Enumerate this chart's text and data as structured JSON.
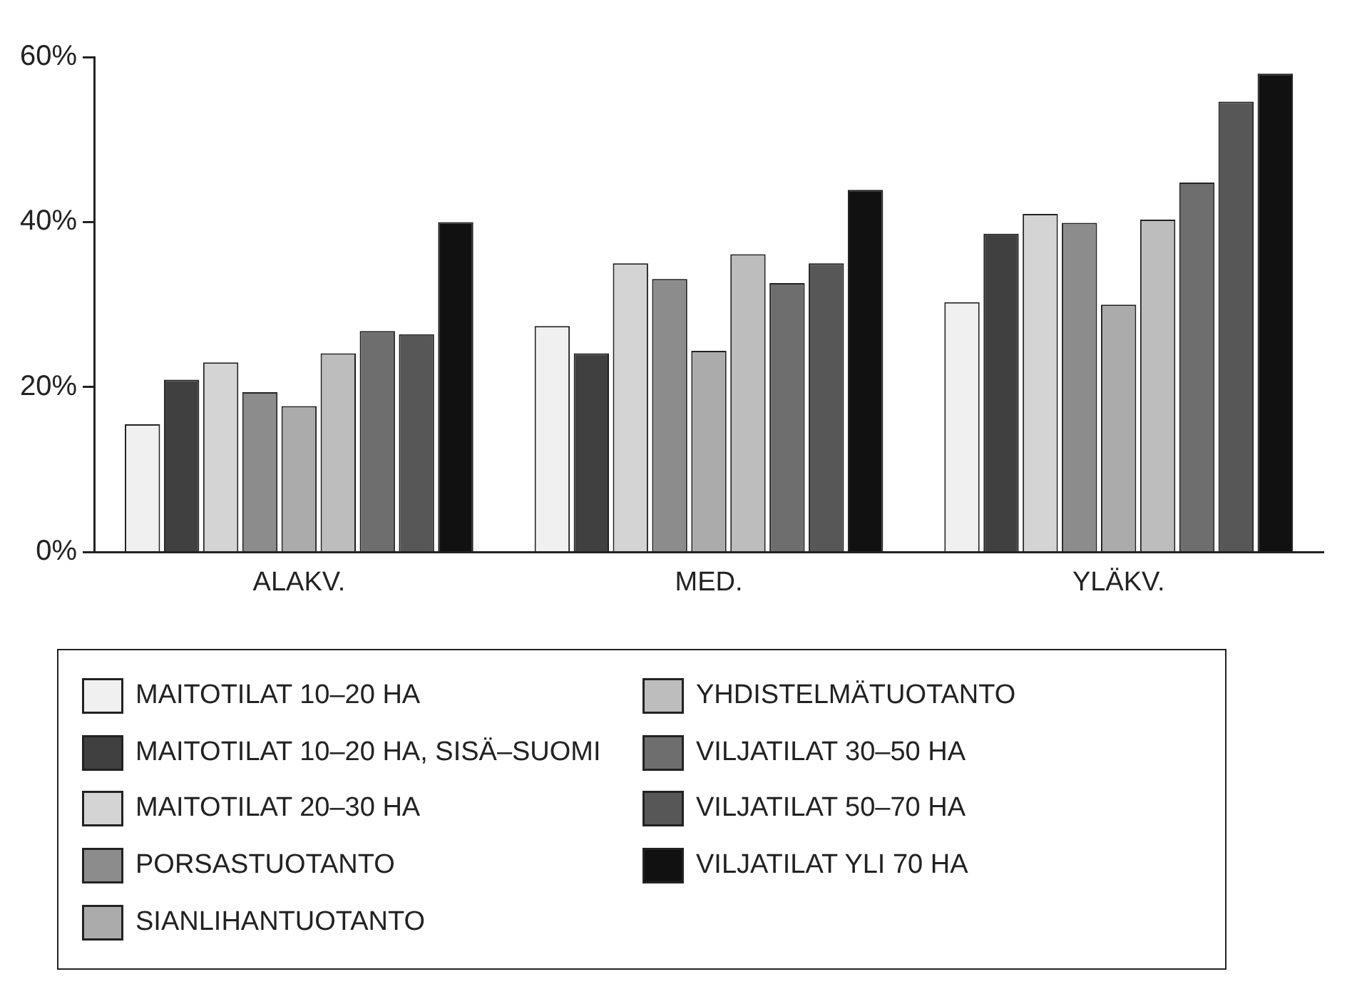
{
  "chart_data": {
    "type": "bar",
    "categories": [
      "ALAKV.",
      "MED.",
      "YLÄKV."
    ],
    "series": [
      {
        "name": "MAITOTILAT 10–20 HA",
        "color": "#f0f0f0",
        "values": [
          15.5,
          27.4,
          30.3
        ]
      },
      {
        "name": "MAITOTILAT 10–20 HA, SISÄ–SUOMI",
        "color": "#404040",
        "values": [
          20.9,
          24.1,
          38.6
        ]
      },
      {
        "name": "MAITOTILAT 20–30 HA",
        "color": "#d4d4d4",
        "values": [
          23.0,
          35.0,
          41.0
        ]
      },
      {
        "name": "PORSASTUOTANTO",
        "color": "#8c8c8c",
        "values": [
          19.4,
          33.1,
          39.9
        ]
      },
      {
        "name": "SIANLIHANTUOTANTO",
        "color": "#ababab",
        "values": [
          17.7,
          24.4,
          30.0
        ]
      },
      {
        "name": "YHDISTELMÄTUOTANTO",
        "color": "#bdbdbd",
        "values": [
          24.1,
          36.1,
          40.3
        ]
      },
      {
        "name": "VILJATILAT 30–50 HA",
        "color": "#6e6e6e",
        "values": [
          26.8,
          32.6,
          44.8
        ]
      },
      {
        "name": "VILJATILAT 50–70 HA",
        "color": "#575757",
        "values": [
          26.4,
          35.0,
          54.6
        ]
      },
      {
        "name": "VILJATILAT YLI 70 HA",
        "color": "#111111",
        "values": [
          40.0,
          43.9,
          58.0
        ]
      }
    ],
    "ylim": [
      0,
      60
    ],
    "yticks": [
      {
        "value": 0,
        "label": "0%"
      },
      {
        "value": 20,
        "label": "20%"
      },
      {
        "value": 40,
        "label": "40%"
      },
      {
        "value": 60,
        "label": "60%"
      }
    ],
    "grid": false,
    "legend": "bottom"
  }
}
